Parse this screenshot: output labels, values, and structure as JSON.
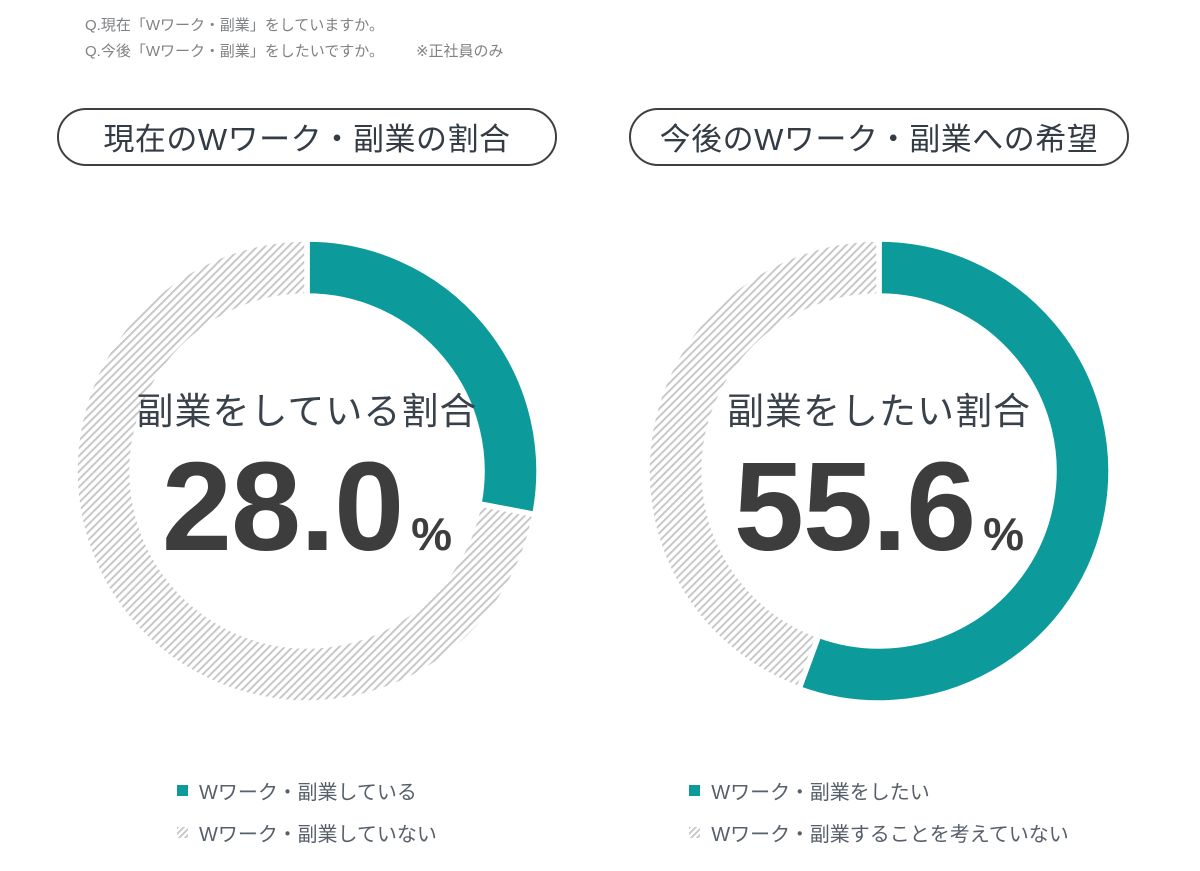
{
  "header": {
    "question1": "Q.現在「Wワーク・副業」をしていますか。",
    "question2": "Q.今後「Wワーク・副業」をしたいですか。",
    "note": "※正社員のみ"
  },
  "colors": {
    "teal": "#0d9a9a",
    "hatch_line": "#c6c6c6",
    "value_text": "#3d3d3d",
    "label_text": "#39424a"
  },
  "chart_data": [
    {
      "type": "pie",
      "subtype": "donut",
      "title": "現在のWワーク・副業の割合",
      "center_label": "副業をしている割合",
      "center_value": "28.0",
      "unit": "%",
      "legend_position": "bottom",
      "slices": [
        {
          "label": "Wワーク・副業している",
          "value": 28.0,
          "style": "solid",
          "color": "#0d9a9a"
        },
        {
          "label": "Wワーク・副業していない",
          "value": 72.0,
          "style": "hatched",
          "color": "#c6c6c6"
        }
      ]
    },
    {
      "type": "pie",
      "subtype": "donut",
      "title": "今後のWワーク・副業への希望",
      "center_label": "副業をしたい割合",
      "center_value": "55.6",
      "unit": "%",
      "legend_position": "bottom",
      "slices": [
        {
          "label": "Wワーク・副業をしたい",
          "value": 55.6,
          "style": "solid",
          "color": "#0d9a9a"
        },
        {
          "label": "Wワーク・副業することを考えていない",
          "value": 44.4,
          "style": "hatched",
          "color": "#c6c6c6"
        }
      ]
    }
  ]
}
